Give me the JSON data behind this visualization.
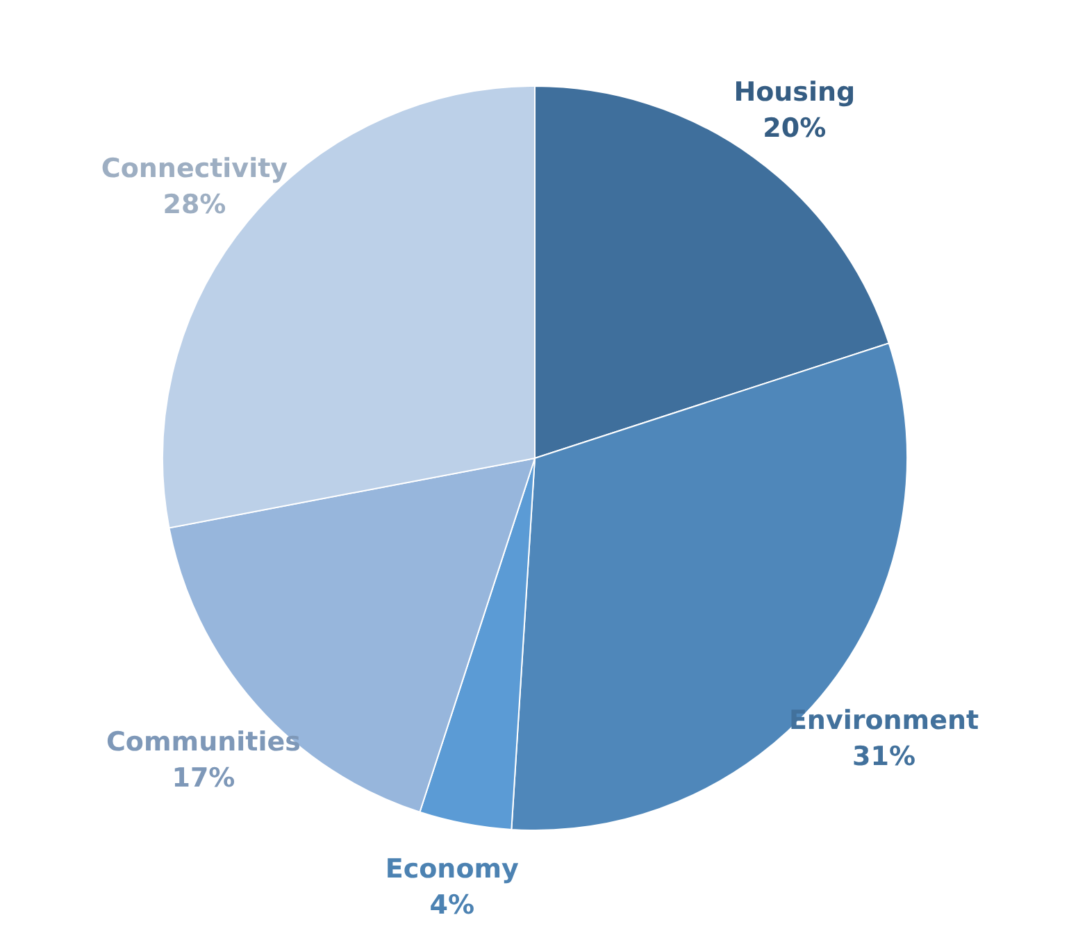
{
  "chart_data": {
    "type": "pie",
    "categories": [
      "Housing",
      "Environment",
      "Economy",
      "Communities",
      "Connectivity"
    ],
    "values": [
      20,
      31,
      4,
      17,
      28
    ],
    "colors": [
      "#3f6f9c",
      "#4f87ba",
      "#5b9bd5",
      "#97b6dc",
      "#bcd0e8"
    ],
    "value_labels": [
      "20%",
      "31%",
      "4%",
      "17%",
      "28%"
    ]
  }
}
